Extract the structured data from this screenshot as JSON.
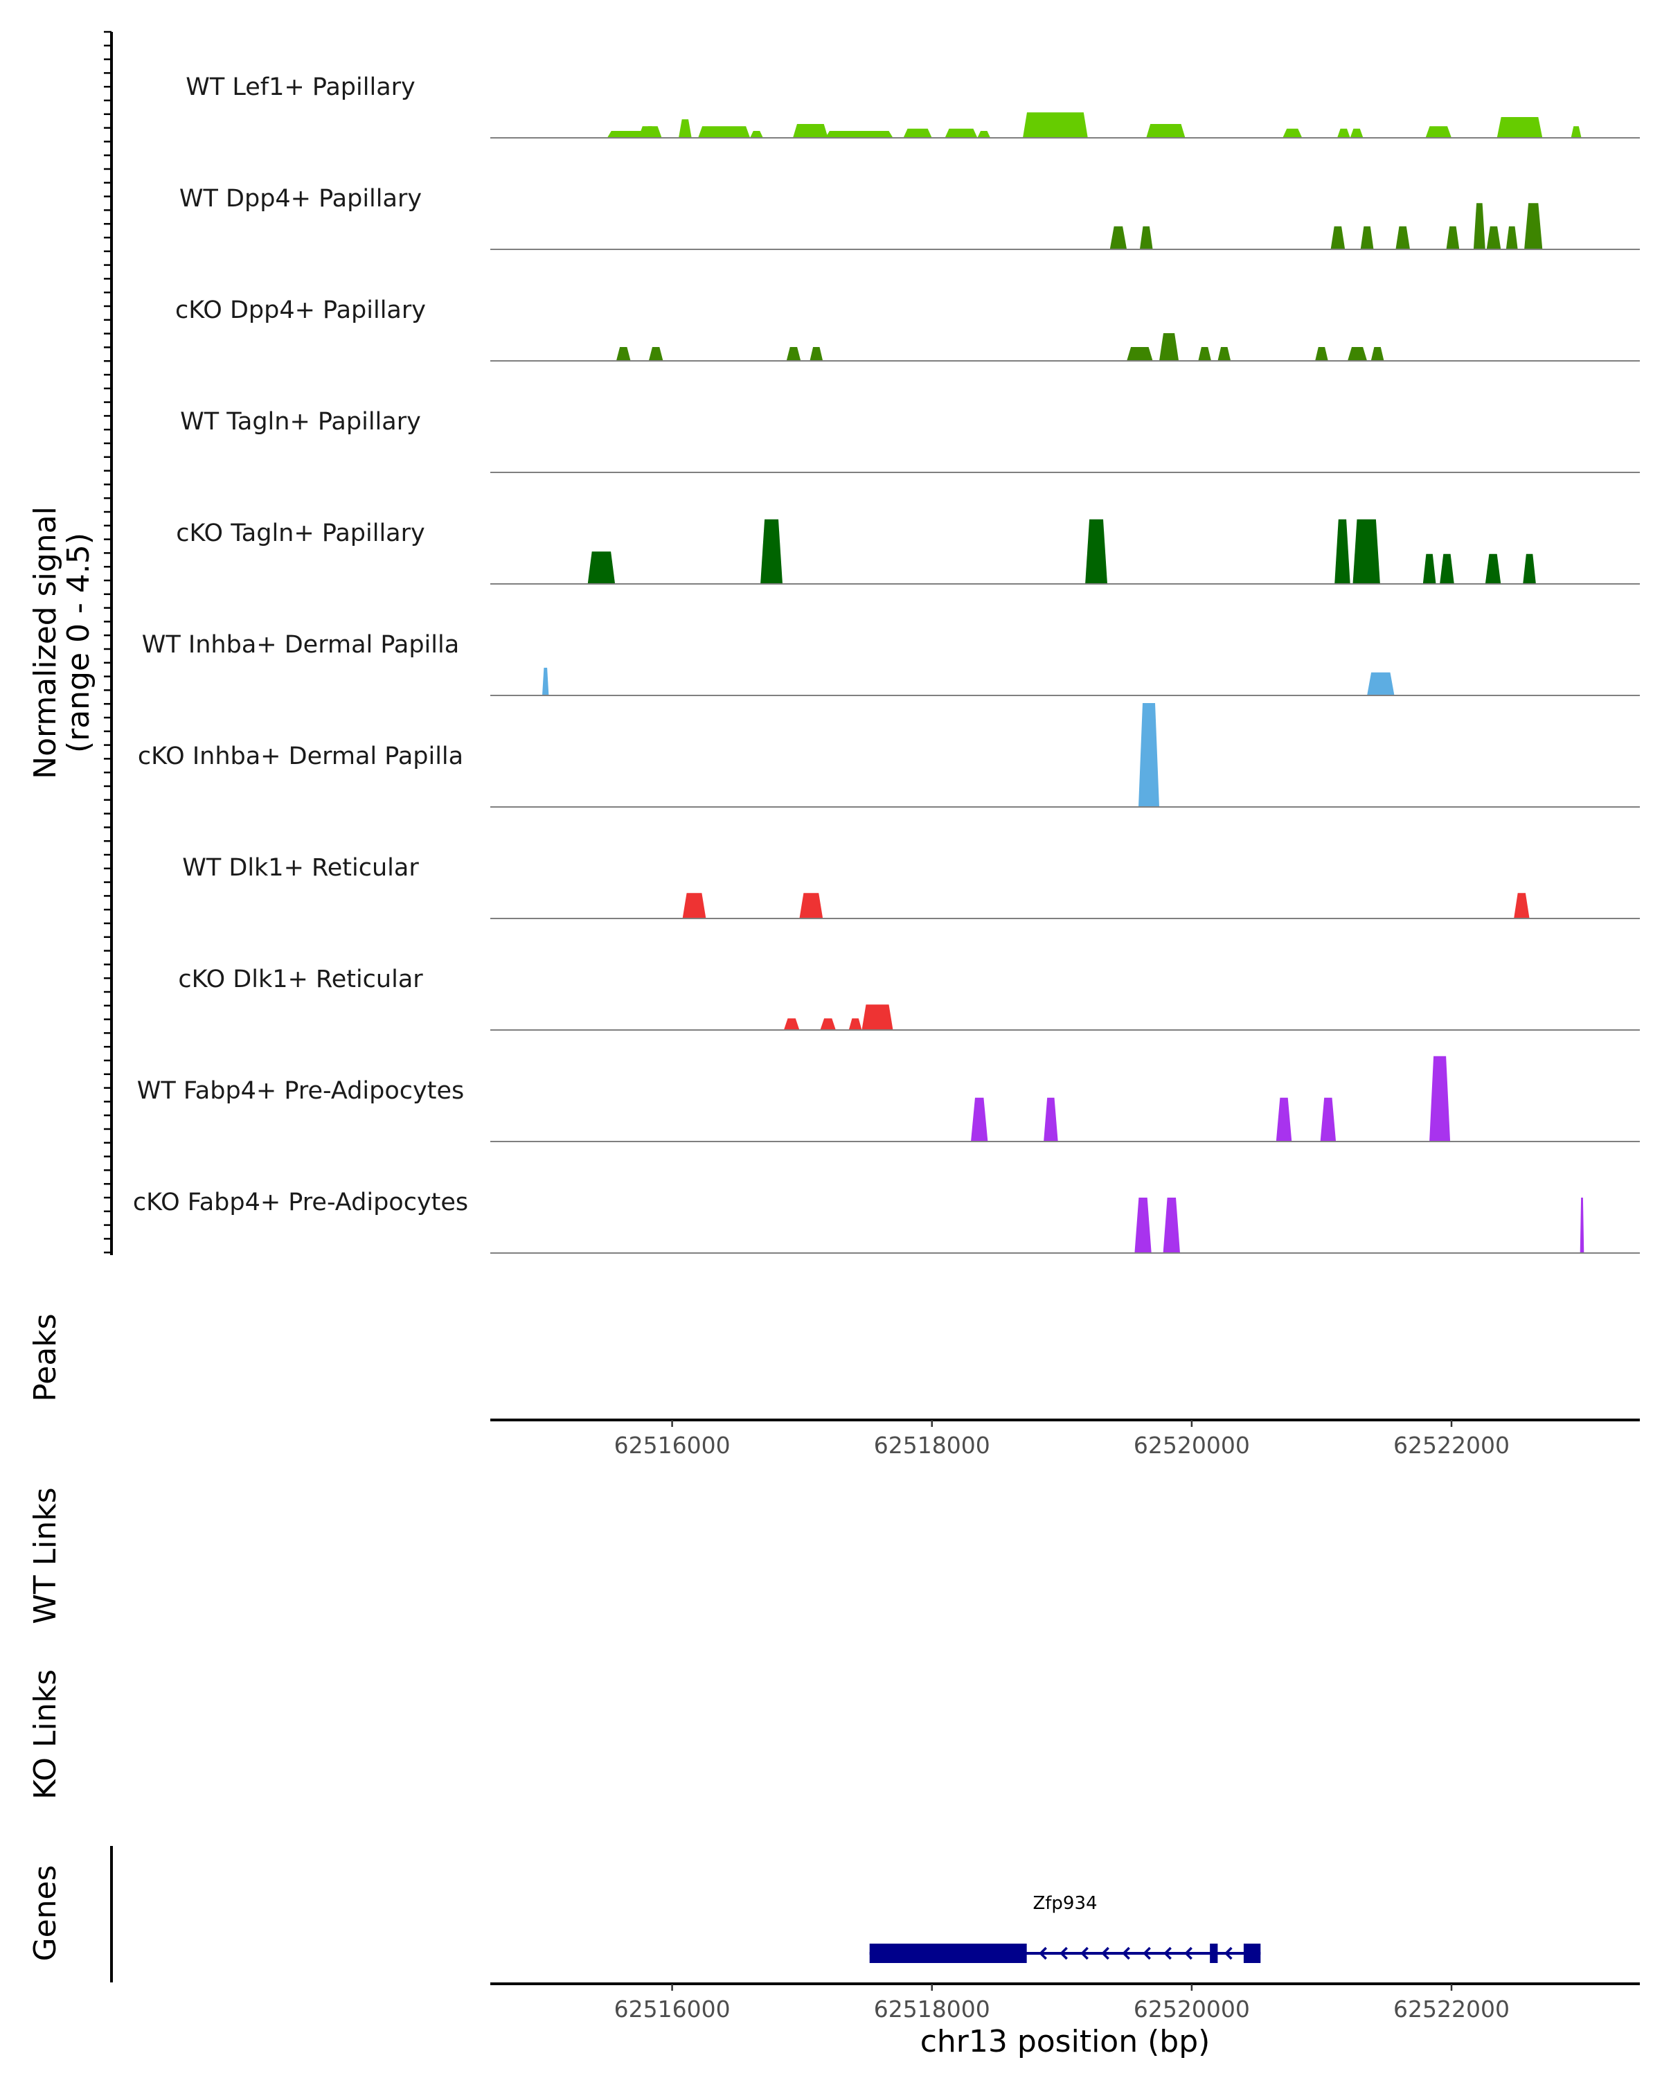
{
  "chart_data": {
    "type": "area",
    "title": "",
    "chromosome": "chr13",
    "xlabel": "chr13 position (bp)",
    "xlim": [
      62514600,
      62523450
    ],
    "xticks": [
      62516000,
      62518000,
      62520000,
      62522000
    ],
    "xtick_labels": [
      "62516000",
      "62518000",
      "62520000",
      "62522000"
    ],
    "ylabel_line1": "Normalized signal",
    "ylabel_line2": "(range 0 - 4.5)",
    "ylim": [
      0,
      4.5
    ],
    "tracks": [
      {
        "name": "WT Lef1+ Papillary",
        "color": "#66cc00",
        "segments": [
          [
            62515500,
            62515850,
            0.3
          ],
          [
            62515800,
            62515860,
            0.5
          ],
          [
            62515740,
            62515920,
            0.5
          ],
          [
            62516050,
            62516150,
            0.8
          ],
          [
            62516200,
            62516600,
            0.5
          ],
          [
            62516600,
            62516700,
            0.3
          ],
          [
            62516930,
            62517200,
            0.6
          ],
          [
            62517180,
            62517630,
            0.3
          ],
          [
            62517500,
            62517700,
            0.3
          ],
          [
            62517780,
            62518000,
            0.4
          ],
          [
            62518100,
            62518350,
            0.4
          ],
          [
            62518350,
            62518450,
            0.3
          ],
          [
            62518700,
            62519200,
            1.1
          ],
          [
            62519650,
            62519950,
            0.6
          ],
          [
            62520700,
            62520850,
            0.4
          ],
          [
            62521120,
            62521220,
            0.4
          ],
          [
            62521220,
            62521320,
            0.4
          ],
          [
            62521800,
            62522000,
            0.5
          ],
          [
            62522350,
            62522700,
            0.9
          ],
          [
            62522920,
            62523000,
            0.5
          ]
        ]
      },
      {
        "name": "WT Dpp4+ Papillary",
        "color": "#3d8500",
        "segments": [
          [
            62519370,
            62519500,
            1.0
          ],
          [
            62519600,
            62519700,
            1.0
          ],
          [
            62521070,
            62521180,
            1.0
          ],
          [
            62521300,
            62521400,
            1.0
          ],
          [
            62521570,
            62521680,
            1.0
          ],
          [
            62521960,
            62522060,
            1.0
          ],
          [
            62522170,
            62522260,
            2.0
          ],
          [
            62522270,
            62522380,
            1.0
          ],
          [
            62522420,
            62522510,
            1.0
          ],
          [
            62522560,
            62522700,
            2.0
          ]
        ]
      },
      {
        "name": "cKO Dpp4+ Papillary",
        "color": "#3d8500",
        "segments": [
          [
            62515570,
            62515680,
            0.6
          ],
          [
            62515820,
            62515930,
            0.6
          ],
          [
            62516880,
            62516990,
            0.6
          ],
          [
            62517060,
            62517160,
            0.6
          ],
          [
            62519500,
            62519700,
            0.6
          ],
          [
            62519750,
            62519900,
            1.2
          ],
          [
            62520050,
            62520150,
            0.6
          ],
          [
            62520200,
            62520300,
            0.6
          ],
          [
            62520950,
            62521050,
            0.6
          ],
          [
            62521200,
            62521350,
            0.6
          ],
          [
            62521380,
            62521480,
            0.6
          ]
        ]
      },
      {
        "name": "WT Tagln+ Papillary",
        "color": "#006400",
        "segments": []
      },
      {
        "name": "cKO Tagln+ Papillary",
        "color": "#006400",
        "segments": [
          [
            62515350,
            62515560,
            1.4
          ],
          [
            62516680,
            62516850,
            2.8
          ],
          [
            62519180,
            62519350,
            2.8
          ],
          [
            62521100,
            62521220,
            2.8
          ],
          [
            62521240,
            62521450,
            2.8
          ],
          [
            62521780,
            62521880,
            1.3
          ],
          [
            62521910,
            62522020,
            1.3
          ],
          [
            62522260,
            62522380,
            1.3
          ],
          [
            62522550,
            62522650,
            1.3
          ]
        ]
      },
      {
        "name": "WT Inhba+ Dermal Papilla",
        "color": "#5dade2",
        "segments": [
          [
            62515000,
            62515050,
            1.2
          ],
          [
            62521350,
            62521560,
            1.0
          ]
        ]
      },
      {
        "name": "cKO Inhba+ Dermal Papilla",
        "color": "#5dade2",
        "segments": [
          [
            62519590,
            62519750,
            4.5
          ]
        ]
      },
      {
        "name": "WT Dlk1+ Reticular",
        "color": "#ee3333",
        "segments": [
          [
            62516080,
            62516260,
            1.1
          ],
          [
            62516980,
            62517160,
            1.1
          ],
          [
            62522480,
            62522600,
            1.1
          ]
        ]
      },
      {
        "name": "cKO Dlk1+ Reticular",
        "color": "#ee3333",
        "segments": [
          [
            62516860,
            62516980,
            0.5
          ],
          [
            62517140,
            62517260,
            0.5
          ],
          [
            62517360,
            62517460,
            0.5
          ],
          [
            62517460,
            62517700,
            1.1
          ]
        ]
      },
      {
        "name": "WT Fabp4+ Pre-Adipocytes",
        "color": "#a833ee",
        "segments": [
          [
            62518300,
            62518430,
            1.9
          ],
          [
            62518860,
            62518970,
            1.9
          ],
          [
            62520650,
            62520770,
            1.9
          ],
          [
            62520990,
            62521110,
            1.9
          ],
          [
            62521830,
            62521990,
            3.7
          ]
        ]
      },
      {
        "name": "cKO Fabp4+ Pre-Adipocytes",
        "color": "#a833ee",
        "segments": [
          [
            62519560,
            62519690,
            2.4
          ],
          [
            62519780,
            62519910,
            2.4
          ],
          [
            62522990,
            62523020,
            2.4
          ]
        ]
      }
    ],
    "panels": {
      "peaks": "Peaks",
      "wt_links": "WT Links",
      "ko_links": "KO Links",
      "genes": "Genes"
    },
    "gene": {
      "name": "Zfp934",
      "strand": "-",
      "start": 62517520,
      "end": 62520530,
      "exons": [
        [
          62517520,
          62518730
        ],
        [
          62520140,
          62520200
        ],
        [
          62520400,
          62520530
        ]
      ],
      "color": "#00008b"
    }
  }
}
